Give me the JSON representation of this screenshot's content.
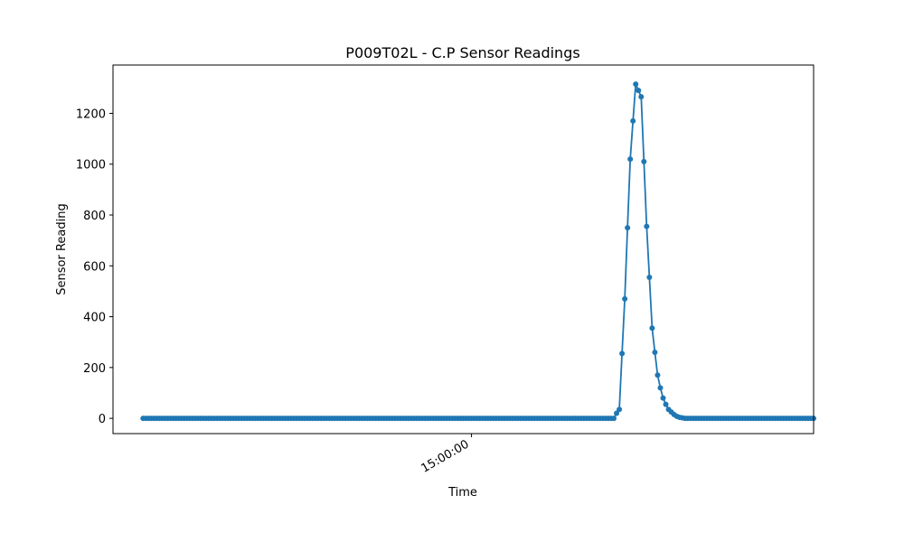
{
  "chart_data": {
    "type": "line",
    "title": "P009T02L - C.P Sensor Readings",
    "xlabel": "Time",
    "ylabel": "Sensor Reading",
    "ylim": [
      -60,
      1390
    ],
    "yticks": [
      0,
      200,
      400,
      600,
      800,
      1000,
      1200
    ],
    "xticks": [
      {
        "x": 120,
        "label": "15:00:00"
      }
    ],
    "xlim": [
      -11,
      245
    ],
    "grid": false,
    "legend": "none",
    "series": [
      {
        "color": "#1f77b4",
        "marker": "circle",
        "points": [
          {
            "x": 0,
            "y": 0
          },
          {
            "x": 172,
            "y": 0
          },
          {
            "x": 173,
            "y": 20
          },
          {
            "x": 174,
            "y": 35
          },
          {
            "x": 175,
            "y": 255
          },
          {
            "x": 176,
            "y": 470
          },
          {
            "x": 177,
            "y": 750
          },
          {
            "x": 178,
            "y": 1020
          },
          {
            "x": 179,
            "y": 1170
          },
          {
            "x": 180,
            "y": 1315
          },
          {
            "x": 181,
            "y": 1290
          },
          {
            "x": 182,
            "y": 1265
          },
          {
            "x": 183,
            "y": 1010
          },
          {
            "x": 184,
            "y": 755
          },
          {
            "x": 185,
            "y": 555
          },
          {
            "x": 186,
            "y": 355
          },
          {
            "x": 187,
            "y": 260
          },
          {
            "x": 188,
            "y": 170
          },
          {
            "x": 189,
            "y": 120
          },
          {
            "x": 190,
            "y": 80
          },
          {
            "x": 191,
            "y": 55
          },
          {
            "x": 192,
            "y": 35
          },
          {
            "x": 193,
            "y": 25
          },
          {
            "x": 194,
            "y": 15
          },
          {
            "x": 195,
            "y": 8
          },
          {
            "x": 196,
            "y": 4
          },
          {
            "x": 197,
            "y": 2
          },
          {
            "x": 198,
            "y": 0
          },
          {
            "x": 245,
            "y": 0
          }
        ]
      }
    ]
  }
}
